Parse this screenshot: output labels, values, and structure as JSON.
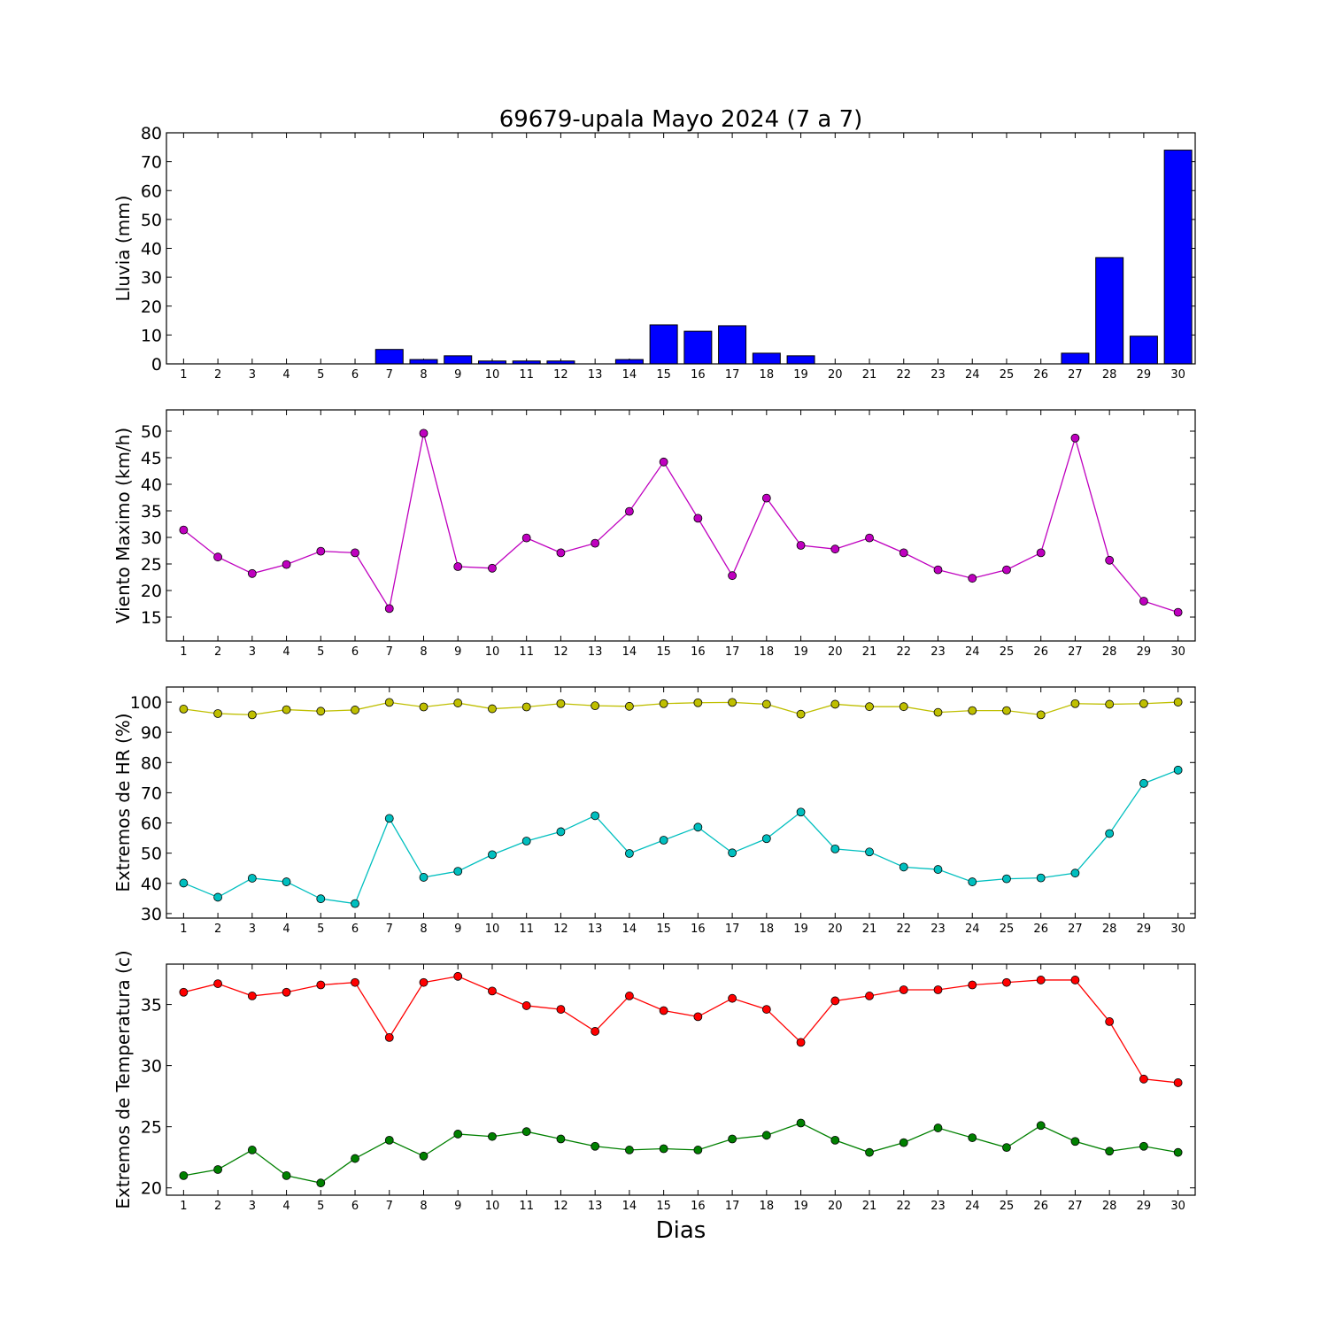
{
  "figure": {
    "title": "69679-upala Mayo 2024  (7 a 7)",
    "xlabel": "Dias"
  },
  "chart_data": [
    {
      "type": "bar",
      "ylabel": "Lluvia (mm)",
      "categories": [
        "1",
        "2",
        "3",
        "4",
        "5",
        "6",
        "7",
        "8",
        "9",
        "10",
        "11",
        "12",
        "13",
        "14",
        "15",
        "16",
        "17",
        "18",
        "19",
        "20",
        "21",
        "22",
        "23",
        "24",
        "25",
        "26",
        "27",
        "28",
        "29",
        "30"
      ],
      "values": [
        0,
        0,
        0,
        0,
        0,
        0,
        5,
        1.5,
        2.8,
        1,
        1,
        1,
        0,
        1.5,
        13.5,
        11.3,
        13.2,
        3.7,
        2.8,
        0,
        0,
        0,
        0,
        0,
        0,
        0,
        3.7,
        36.8,
        9.6,
        74
      ],
      "ylim": [
        0,
        80
      ],
      "yticks": [
        0,
        10,
        20,
        30,
        40,
        50,
        60,
        70,
        80
      ],
      "color": "#0000ff",
      "grid": false
    },
    {
      "type": "line",
      "ylabel": "Viento Maximo (km/h)",
      "x": [
        1,
        2,
        3,
        4,
        5,
        6,
        7,
        8,
        9,
        10,
        11,
        12,
        13,
        14,
        15,
        16,
        17,
        18,
        19,
        20,
        21,
        22,
        23,
        24,
        25,
        26,
        27,
        28,
        29,
        30
      ],
      "series": [
        {
          "values": [
            31.4,
            26.3,
            23.2,
            24.9,
            27.4,
            27.1,
            16.6,
            49.6,
            24.5,
            24.2,
            29.9,
            27.1,
            28.9,
            34.9,
            44.2,
            33.6,
            22.8,
            37.4,
            28.5,
            27.8,
            29.9,
            27.1,
            23.9,
            22.3,
            23.9,
            27.1,
            48.7,
            25.7,
            18.0,
            15.9
          ],
          "color": "#bf00bf"
        }
      ],
      "ylim": [
        10.5,
        54
      ],
      "yticks": [
        15,
        20,
        25,
        30,
        35,
        40,
        45,
        50
      ],
      "grid": false
    },
    {
      "type": "line",
      "ylabel": "Extremos de HR (%)",
      "x": [
        1,
        2,
        3,
        4,
        5,
        6,
        7,
        8,
        9,
        10,
        11,
        12,
        13,
        14,
        15,
        16,
        17,
        18,
        19,
        20,
        21,
        22,
        23,
        24,
        25,
        26,
        27,
        28,
        29,
        30
      ],
      "series": [
        {
          "values": [
            97.7,
            96.2,
            95.8,
            97.5,
            97,
            97.4,
            99.9,
            98.4,
            99.7,
            97.8,
            98.4,
            99.5,
            98.8,
            98.6,
            99.5,
            99.8,
            99.9,
            99.3,
            96,
            99.3,
            98.5,
            98.5,
            96.6,
            97.2,
            97.2,
            95.8,
            99.5,
            99.3,
            99.5,
            100
          ],
          "color": "#bfbf00"
        },
        {
          "values": [
            40.1,
            35.4,
            41.7,
            40.5,
            34.9,
            33.3,
            61.5,
            42,
            44,
            49.5,
            54,
            57.1,
            62.4,
            49.9,
            54.3,
            58.6,
            50.1,
            54.8,
            63.6,
            51.4,
            50.4,
            45.4,
            44.6,
            40.5,
            41.5,
            41.8,
            43.4,
            56.5,
            73.1,
            77.5
          ],
          "color": "#00bfbf"
        }
      ],
      "ylim": [
        28.5,
        105
      ],
      "yticks": [
        30,
        40,
        50,
        60,
        70,
        80,
        90,
        100
      ],
      "grid": false
    },
    {
      "type": "line",
      "ylabel": "Extremos de Temperatura (c)",
      "x": [
        1,
        2,
        3,
        4,
        5,
        6,
        7,
        8,
        9,
        10,
        11,
        12,
        13,
        14,
        15,
        16,
        17,
        18,
        19,
        20,
        21,
        22,
        23,
        24,
        25,
        26,
        27,
        28,
        29,
        30
      ],
      "series": [
        {
          "values": [
            36,
            36.7,
            35.7,
            36,
            36.6,
            36.8,
            32.3,
            36.8,
            37.3,
            36.1,
            34.9,
            34.6,
            32.8,
            35.7,
            34.5,
            34,
            35.5,
            34.6,
            31.9,
            35.3,
            35.7,
            36.2,
            36.2,
            36.6,
            36.8,
            37,
            37,
            33.6,
            28.9,
            28.6
          ],
          "color": "#ff0000"
        },
        {
          "values": [
            21,
            21.5,
            23.1,
            21,
            20.4,
            22.4,
            23.9,
            22.6,
            24.4,
            24.2,
            24.6,
            24,
            23.4,
            23.1,
            23.2,
            23.1,
            24,
            24.3,
            25.3,
            23.9,
            22.9,
            23.7,
            24.9,
            24.1,
            23.3,
            25.1,
            23.8,
            23,
            23.4,
            22.9
          ],
          "color": "#008000"
        }
      ],
      "ylim": [
        19.4,
        38.3
      ],
      "yticks": [
        20,
        25,
        30,
        35
      ],
      "grid": false
    }
  ]
}
